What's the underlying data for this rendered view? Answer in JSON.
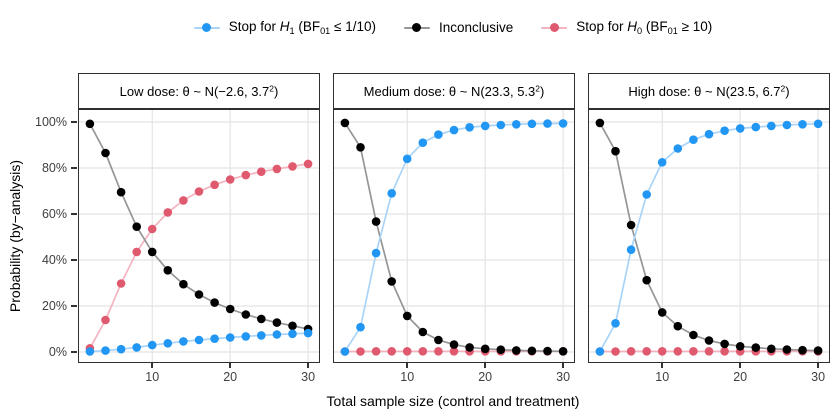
{
  "legend": {
    "items": [
      {
        "series_key": "stop_h1",
        "pre": "Stop for ",
        "var": "H",
        "sub": "1",
        "mid": " (BF",
        "sub2": "01",
        "tail": " ≤ 1/10)"
      },
      {
        "series_key": "inconclusive",
        "label": "Inconclusive"
      },
      {
        "series_key": "stop_h0",
        "pre": "Stop for ",
        "var": "H",
        "sub": "0",
        "mid": " (BF",
        "sub2": "01",
        "tail": " ≥ 10)"
      }
    ]
  },
  "chart_data": {
    "type": "line",
    "x": [
      2,
      4,
      6,
      8,
      10,
      12,
      14,
      16,
      18,
      20,
      22,
      24,
      26,
      28,
      30
    ],
    "xlabel": "Total sample size (control and treatment)",
    "ylabel": "Probability (by−analysis)",
    "ylim": [
      0,
      100
    ],
    "yticks": [
      0,
      20,
      40,
      60,
      80,
      100
    ],
    "ytick_labels": [
      "0%",
      "20%",
      "40%",
      "60%",
      "80%",
      "100%"
    ],
    "xticks": [
      10,
      20,
      30
    ],
    "grid": "major",
    "legend_position": "top",
    "grid_color": "#E4E4E4",
    "panel_border_color": "#2F2F2F",
    "tick_color": "#333333",
    "series_meta": [
      {
        "key": "stop_h1",
        "name": "Stop for H1 (BF01 ≤ 1/10)",
        "color": "#2196F3",
        "line_color": "#A9D4F8"
      },
      {
        "key": "inconclusive",
        "name": "Inconclusive",
        "color": "#000000",
        "line_color": "#969696"
      },
      {
        "key": "stop_h0",
        "name": "Stop for H0 (BF01 ≥ 10)",
        "color": "#E05A6F",
        "line_color": "#F3B4C0"
      }
    ],
    "draw_order": [
      "stop_h0",
      "inconclusive",
      "stop_h1"
    ],
    "panels": [
      {
        "id": "low",
        "title": "Low dose: θ ~ N(−2.6, 3.7²)",
        "title_parts": {
          "pre": "Low dose: θ ~ N(−2.6, 3.7",
          "sup": "2",
          "tail": ")"
        },
        "series": {
          "stop_h1": [
            0.2,
            0.6,
            1.2,
            2.0,
            3.0,
            3.8,
            4.6,
            5.2,
            5.8,
            6.3,
            6.8,
            7.2,
            7.6,
            7.9,
            8.2
          ],
          "inconclusive": [
            99.2,
            86.5,
            69.5,
            54.5,
            43.5,
            35.5,
            29.5,
            25.0,
            21.5,
            18.7,
            16.3,
            14.4,
            12.8,
            11.4,
            10.0
          ],
          "stop_h0": [
            1.6,
            13.9,
            29.8,
            43.5,
            53.5,
            60.7,
            65.9,
            69.8,
            72.7,
            75.0,
            76.9,
            78.4,
            79.6,
            80.7,
            81.8
          ]
        }
      },
      {
        "id": "medium",
        "title": "Medium dose: θ ~ N(23.3, 5.3²)",
        "title_parts": {
          "pre": "Medium dose: θ ~ N(23.3, 5.3",
          "sup": "2",
          "tail": ")"
        },
        "series": {
          "stop_h1": [
            0.2,
            10.8,
            43.0,
            69.0,
            84.0,
            91.0,
            94.5,
            96.5,
            97.7,
            98.3,
            98.7,
            99.0,
            99.2,
            99.3,
            99.4
          ],
          "inconclusive": [
            99.6,
            89.0,
            56.7,
            30.7,
            15.7,
            8.7,
            5.2,
            3.2,
            2.0,
            1.4,
            1.0,
            0.7,
            0.5,
            0.4,
            0.3
          ],
          "stop_h0": [
            0.2,
            0.2,
            0.3,
            0.3,
            0.3,
            0.3,
            0.3,
            0.3,
            0.3,
            0.3,
            0.3,
            0.3,
            0.3,
            0.3,
            0.3
          ]
        }
      },
      {
        "id": "high",
        "title": "High dose: θ ~ N(23.5, 6.7²)",
        "title_parts": {
          "pre": "High dose: θ ~ N(23.5, 6.7",
          "sup": "2",
          "tail": ")"
        },
        "series": {
          "stop_h1": [
            0.2,
            12.5,
            44.5,
            68.5,
            82.5,
            88.5,
            92.3,
            94.7,
            96.2,
            97.2,
            97.8,
            98.3,
            98.7,
            99.0,
            99.2
          ],
          "inconclusive": [
            99.6,
            87.3,
            55.2,
            31.2,
            17.2,
            11.2,
            7.4,
            5.0,
            3.5,
            2.5,
            1.9,
            1.4,
            1.1,
            0.8,
            0.6
          ],
          "stop_h0": [
            0.2,
            0.2,
            0.3,
            0.3,
            0.3,
            0.3,
            0.3,
            0.3,
            0.3,
            0.3,
            0.3,
            0.3,
            0.3,
            0.3,
            0.2
          ]
        }
      }
    ]
  }
}
